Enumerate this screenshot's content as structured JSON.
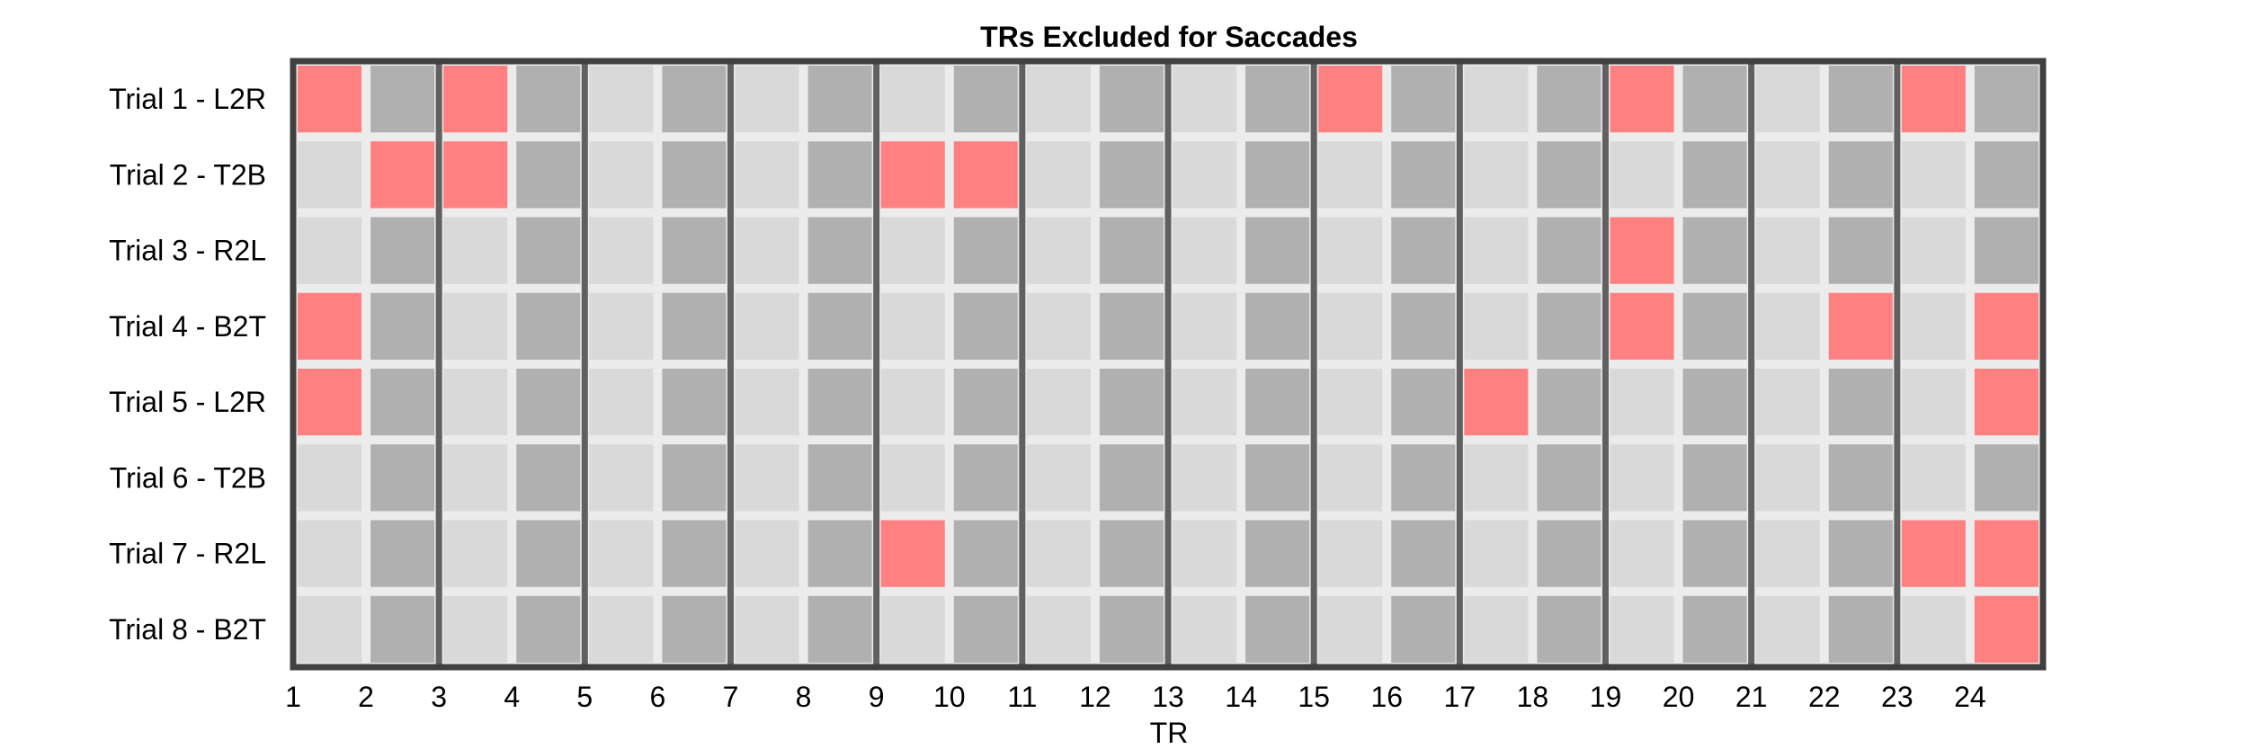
{
  "chart_data": {
    "type": "heatmap",
    "title": "TRs Excluded for Saccades",
    "xlabel": "TR",
    "ylabel": "",
    "rows": [
      "Trial 1 - L2R",
      "Trial 2 - T2B",
      "Trial 3 - R2L",
      "Trial 4 - B2T",
      "Trial 5 - L2R",
      "Trial 6 - T2B",
      "Trial 7 - R2L",
      "Trial 8 - B2T"
    ],
    "x_ticks": [
      1,
      2,
      3,
      4,
      5,
      6,
      7,
      8,
      9,
      10,
      11,
      12,
      13,
      14,
      15,
      16,
      17,
      18,
      19,
      20,
      21,
      22,
      23,
      24
    ],
    "excluded_trs": {
      "Trial 1 - L2R": [
        1,
        3,
        15,
        19,
        23
      ],
      "Trial 2 - T2B": [
        2,
        3,
        9,
        10
      ],
      "Trial 3 - R2L": [
        19
      ],
      "Trial 4 - B2T": [
        1,
        19,
        22,
        24
      ],
      "Trial 5 - L2R": [
        1,
        17,
        24
      ],
      "Trial 6 - T2B": [],
      "Trial 7 - R2L": [
        9,
        23,
        24
      ],
      "Trial 8 - B2T": [
        24
      ]
    },
    "colors": {
      "excluded": "#ff8080",
      "included_odd": "#d9d9d9",
      "included_even": "#b0b0b0",
      "gap": "#ececec",
      "separator": "#606060",
      "frame": "#404040"
    },
    "grid": false
  }
}
